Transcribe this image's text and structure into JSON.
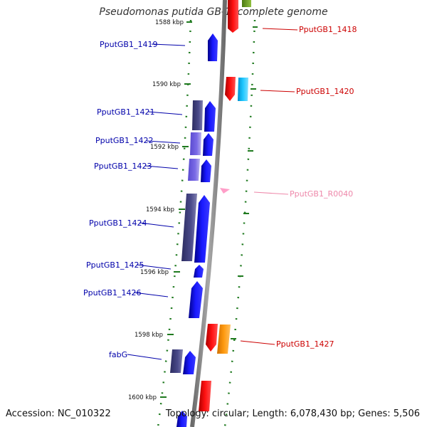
{
  "header": {
    "title": "Pseudomonas putida GB-1, complete genome"
  },
  "footer": {
    "accession": "Accession: NC_010322",
    "topology": "Topology: circular; Length: 6,078,430 bp; Genes: 5,506"
  },
  "colors": {
    "backbone": "#8c8c8c",
    "tick": "#1f7a1f",
    "forward_label": "#0000aa",
    "reverse_label": "#cc0000",
    "rna_label": "#ee88aa"
  },
  "map": {
    "scale_labels": [
      "1588 kbp",
      "1590 kbp",
      "1592 kbp",
      "1594 kbp",
      "1596 kbp",
      "1598 kbp",
      "1600 kbp"
    ],
    "genes": [
      {
        "name": "PputGB1_1418",
        "strand": "reverse"
      },
      {
        "name": "PputGB1_1419",
        "strand": "forward"
      },
      {
        "name": "PputGB1_1420",
        "strand": "reverse"
      },
      {
        "name": "PputGB1_1421",
        "strand": "forward"
      },
      {
        "name": "PputGB1_1422",
        "strand": "forward"
      },
      {
        "name": "PputGB1_1423",
        "strand": "forward"
      },
      {
        "name": "PputGB1_R0040",
        "strand": "reverse"
      },
      {
        "name": "PputGB1_1424",
        "strand": "forward"
      },
      {
        "name": "PputGB1_1425",
        "strand": "forward"
      },
      {
        "name": "PputGB1_1426",
        "strand": "forward"
      },
      {
        "name": "PputGB1_1427",
        "strand": "reverse"
      },
      {
        "name": "fabG",
        "strand": "forward"
      }
    ]
  }
}
